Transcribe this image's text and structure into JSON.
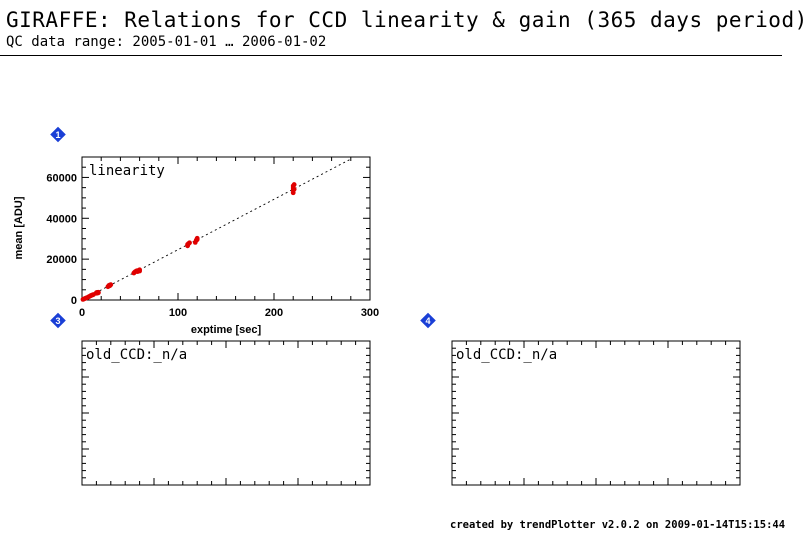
{
  "header": {
    "title": "GIRAFFE: Relations for CCD linearity & gain (365 days period)",
    "subtitle": "QC data range: 2005-01-01 … 2006-01-02"
  },
  "footer": {
    "text": "created by trendPlotter v2.0.2 on 2009-01-14T15:15:44"
  },
  "badges": {
    "panel1": "1",
    "panel3": "3",
    "panel4": "4"
  },
  "colors": {
    "points": "#e00000",
    "badge": "#1a3fd6",
    "fit_line": "#000000"
  },
  "chart_data": [
    {
      "type": "scatter",
      "title": "linearity",
      "xlabel": "exptime [sec]",
      "ylabel": "mean [ADU]",
      "xlim": [
        0,
        300
      ],
      "ylim": [
        0,
        70000
      ],
      "xticks": [
        0,
        100,
        200,
        300
      ],
      "yticks": [
        0,
        20000,
        40000,
        60000
      ],
      "xtick_labels": [
        "0",
        "100",
        "200",
        "300"
      ],
      "ytick_labels": [
        "0",
        "20000",
        "40000",
        "60000"
      ],
      "fit_line": {
        "style": "dotted",
        "x": [
          0,
          280
        ],
        "y": [
          0,
          69000
        ]
      },
      "series": [
        {
          "x": [
            1,
            2,
            3,
            4,
            5,
            6,
            7,
            8,
            9,
            10,
            11,
            12,
            15,
            15,
            16,
            16,
            17,
            17,
            27,
            28,
            28,
            29,
            29,
            30,
            54,
            55,
            56,
            57,
            58,
            59,
            60,
            60,
            110,
            110,
            111,
            112,
            118,
            119,
            120,
            120,
            220,
            220,
            220,
            220,
            221,
            221
          ],
          "y": [
            300,
            500,
            700,
            900,
            1100,
            1300,
            1600,
            1800,
            2100,
            2300,
            2500,
            2700,
            3300,
            3600,
            3400,
            3700,
            3500,
            3800,
            6500,
            6800,
            7100,
            7000,
            7300,
            7500,
            13200,
            13700,
            14000,
            14300,
            13900,
            14500,
            14800,
            14200,
            26500,
            27200,
            27600,
            28000,
            28200,
            29200,
            30200,
            29600,
            52500,
            53800,
            54800,
            55800,
            54200,
            56500
          ]
        }
      ]
    },
    {
      "type": "scatter",
      "title": "old_CCD:_n/a",
      "series": []
    },
    {
      "type": "scatter",
      "title": "old_CCD:_n/a",
      "series": []
    }
  ]
}
